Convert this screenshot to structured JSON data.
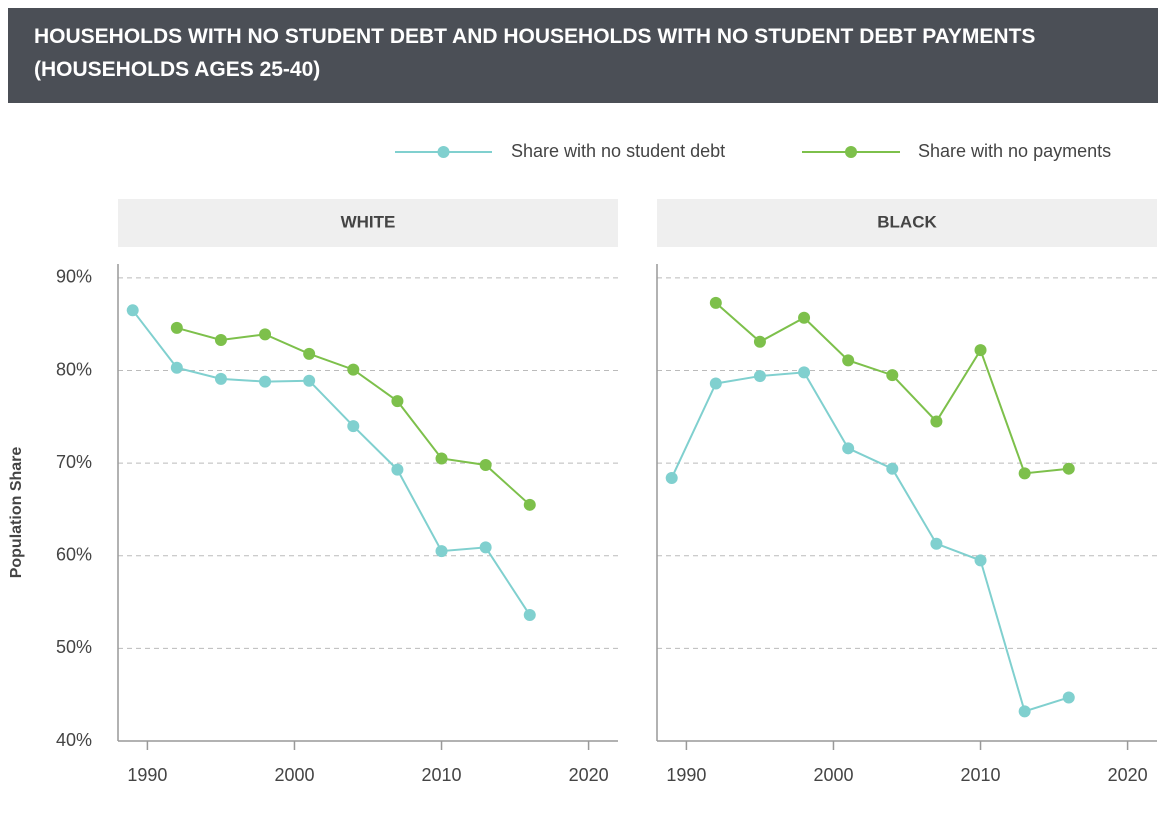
{
  "title": "HOUSEHOLDS WITH NO STUDENT DEBT AND HOUSEHOLDS WITH NO STUDENT DEBT PAYMENTS (HOUSEHOLDS AGES 25-40)",
  "chart_data": [
    {
      "type": "line",
      "title": "WHITE",
      "ylabel": "Population Share",
      "x": [
        1989,
        1992,
        1995,
        1998,
        2001,
        2004,
        2007,
        2010,
        2013,
        2016
      ],
      "series": [
        {
          "name": "Share with no student debt",
          "color": "#80d0cf",
          "values": [
            86.5,
            80.3,
            79.1,
            78.8,
            78.9,
            74.0,
            69.3,
            60.5,
            60.9,
            53.6
          ]
        },
        {
          "name": "Share with no payments",
          "color": "#7dc04b",
          "values": [
            null,
            84.6,
            83.3,
            83.9,
            81.8,
            80.1,
            76.7,
            70.5,
            69.8,
            65.5
          ]
        }
      ],
      "xlim": [
        1988,
        2022
      ],
      "xticks": [
        1990,
        2000,
        2010,
        2020
      ],
      "ylim": [
        40,
        91.5
      ],
      "yticks": [
        {
          "value": 40,
          "label": "40%"
        },
        {
          "value": 50,
          "label": "50%"
        },
        {
          "value": 60,
          "label": "60%"
        },
        {
          "value": 70,
          "label": "70%"
        },
        {
          "value": 80,
          "label": "80%"
        },
        {
          "value": 90,
          "label": "90%"
        }
      ],
      "grid": true
    },
    {
      "type": "line",
      "title": "BLACK",
      "x": [
        1989,
        1992,
        1995,
        1998,
        2001,
        2004,
        2007,
        2010,
        2013,
        2016
      ],
      "series": [
        {
          "name": "Share with no student debt",
          "color": "#80d0cf",
          "values": [
            68.4,
            78.6,
            79.4,
            79.8,
            71.6,
            69.4,
            61.3,
            59.5,
            43.2,
            44.7
          ]
        },
        {
          "name": "Share with no payments",
          "color": "#7dc04b",
          "values": [
            null,
            87.3,
            83.1,
            85.7,
            81.1,
            79.5,
            74.5,
            82.2,
            68.9,
            69.4
          ]
        }
      ],
      "xlim": [
        1988,
        2022
      ],
      "xticks": [
        1990,
        2000,
        2010,
        2020
      ],
      "ylim": [
        40,
        91.5
      ],
      "yticks": [
        40,
        50,
        60,
        70,
        80,
        90
      ],
      "grid": true
    }
  ]
}
